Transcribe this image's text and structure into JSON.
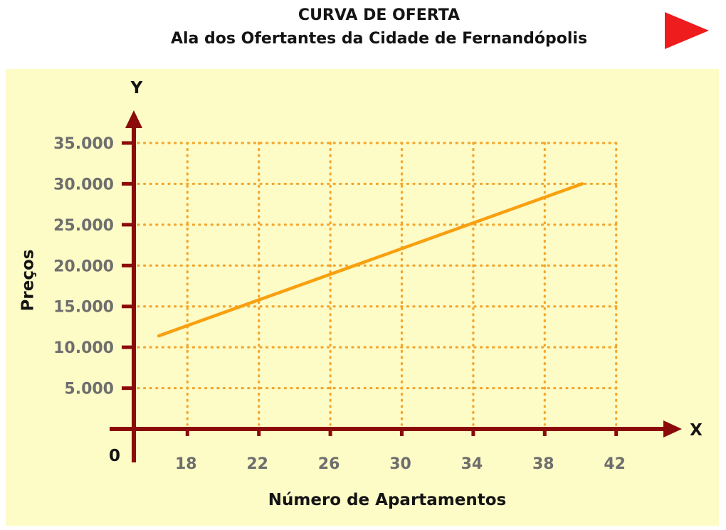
{
  "header": {
    "title": "CURVA DE OFERTA",
    "subtitle": "Ala dos Ofertantes da Cidade de Fernandópolis"
  },
  "navigation": {
    "next_icon": "play-triangle-icon",
    "next_color": "#ee1c1c"
  },
  "colors": {
    "panel": "#fdfbc6",
    "axis": "#8b0a0a",
    "grid": "#f4a52c",
    "line": "#f8a010",
    "tick_text": "#6e6e6e",
    "label_text": "#141414"
  },
  "chart_data": {
    "type": "line",
    "title": "CURVA DE OFERTA",
    "subtitle": "Ala dos Ofertantes da Cidade de Fernandópolis",
    "xlabel": "Número de Apartamentos",
    "ylabel": "Preços",
    "x_axis_letter": "X",
    "y_axis_letter": "Y",
    "origin_label": "0",
    "x_ticks": [
      18,
      22,
      26,
      30,
      34,
      38,
      42
    ],
    "x_tick_labels": [
      "18",
      "22",
      "26",
      "30",
      "34",
      "38",
      "42"
    ],
    "y_ticks": [
      5000,
      10000,
      15000,
      20000,
      25000,
      30000,
      35000
    ],
    "y_tick_labels": [
      "5.000",
      "10.000",
      "15.000",
      "20.000",
      "25.000",
      "30.000",
      "35.000"
    ],
    "xlim": [
      15,
      42
    ],
    "ylim": [
      0,
      35000
    ],
    "grid": true,
    "series": [
      {
        "x": [
          16.4,
          40.1
        ],
        "y": [
          11400,
          30000
        ]
      }
    ]
  }
}
